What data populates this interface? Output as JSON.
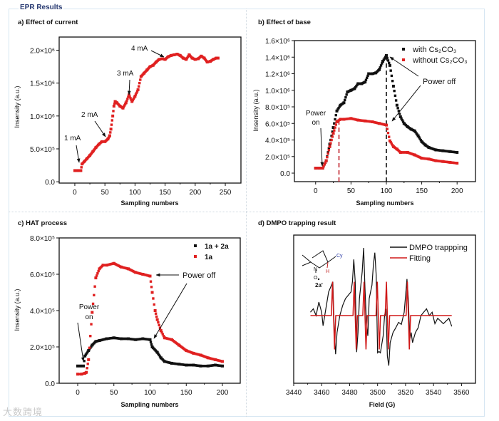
{
  "header": {
    "title": "EPR Results"
  },
  "watermark": "大数跨境",
  "chart_data": [
    {
      "id": "a",
      "panel_title": "a) Effect of current",
      "type": "scatter",
      "xlabel": "Sampling numbers",
      "ylabel": "Insensity (a.u.)",
      "xlim": [
        -26,
        276
      ],
      "ylim": [
        -20000,
        2200000
      ],
      "xticks": [
        0,
        50,
        100,
        150,
        200,
        250
      ],
      "xtick_labels": [
        "0",
        "50",
        "100",
        "150",
        "200",
        "250"
      ],
      "yticks": [
        0,
        500000,
        1000000,
        1500000,
        2000000
      ],
      "ytick_labels": [
        "0.0",
        "5.0×10⁵",
        "1.0×10⁶",
        "1.5×10⁶",
        "2.0×10⁶"
      ],
      "series": [
        {
          "name": "intensity",
          "color": "#e02020",
          "x": [
            0,
            5,
            10,
            12,
            16,
            20,
            25,
            30,
            35,
            40,
            45,
            50,
            55,
            58,
            60,
            63,
            65,
            67,
            70,
            75,
            80,
            85,
            90,
            95,
            100,
            105,
            110,
            115,
            120,
            125,
            130,
            135,
            140,
            145,
            150,
            155,
            160,
            165,
            170,
            175,
            180,
            185,
            190,
            195,
            200,
            205,
            210,
            215,
            220,
            225,
            230,
            235,
            238
          ],
          "y": [
            170000,
            170000,
            170000,
            270000,
            310000,
            350000,
            400000,
            460000,
            520000,
            570000,
            610000,
            610000,
            650000,
            700000,
            800000,
            1000000,
            1150000,
            1220000,
            1200000,
            1150000,
            1120000,
            1200000,
            1320000,
            1220000,
            1300000,
            1400000,
            1600000,
            1650000,
            1700000,
            1750000,
            1770000,
            1820000,
            1860000,
            1870000,
            1860000,
            1900000,
            1920000,
            1930000,
            1940000,
            1920000,
            1880000,
            1860000,
            1930000,
            1880000,
            1860000,
            1870000,
            1910000,
            1880000,
            1820000,
            1830000,
            1860000,
            1880000,
            1880000
          ]
        }
      ],
      "annotations": [
        {
          "text": "1 mA",
          "at_x": 8,
          "at_y": 220000
        },
        {
          "text": "2 mA",
          "at_x": 52,
          "at_y": 680000
        },
        {
          "text": "3 mA",
          "at_x": 92,
          "at_y": 1320000
        },
        {
          "text": "4 mA",
          "at_x": 148,
          "at_y": 1890000
        }
      ]
    },
    {
      "id": "b",
      "panel_title": "b) Effect of base",
      "type": "scatter",
      "xlabel": "Sampling numbers",
      "ylabel": "Insensity (a.u.)",
      "xlim": [
        -30,
        226
      ],
      "ylim": [
        -103000,
        1600000
      ],
      "xticks": [
        0,
        50,
        100,
        150,
        200
      ],
      "xtick_labels": [
        "0",
        "50",
        "100",
        "150",
        "200"
      ],
      "yticks": [
        0,
        200000,
        400000,
        600000,
        800000,
        1000000,
        1200000,
        1400000,
        1600000
      ],
      "ytick_labels": [
        "0.0",
        "2.0×10⁵",
        "4.0×10⁵",
        "6.0×10⁵",
        "8.0×10⁵",
        "1.0×10⁶",
        "1.2×10⁶",
        "1.4×10⁶",
        "1.6×10⁶"
      ],
      "legend": "top-right",
      "series": [
        {
          "name": "with Cs₂CO₃",
          "color": "#111111",
          "x": [
            0,
            5,
            10,
            15,
            20,
            25,
            30,
            35,
            40,
            45,
            50,
            55,
            60,
            65,
            70,
            75,
            80,
            85,
            90,
            95,
            100,
            105,
            110,
            115,
            120,
            125,
            130,
            135,
            140,
            145,
            150,
            155,
            160,
            170,
            180,
            190,
            200
          ],
          "y": [
            60000,
            60000,
            60000,
            150000,
            350000,
            550000,
            750000,
            820000,
            850000,
            980000,
            1000000,
            1020000,
            1080000,
            1080000,
            1100000,
            1200000,
            1200000,
            1210000,
            1250000,
            1350000,
            1420000,
            1300000,
            1050000,
            820000,
            680000,
            600000,
            560000,
            530000,
            510000,
            450000,
            380000,
            340000,
            310000,
            280000,
            270000,
            260000,
            250000
          ]
        },
        {
          "name": "without Cs₂CO₃",
          "color": "#e02020",
          "x": [
            0,
            5,
            10,
            15,
            20,
            25,
            30,
            35,
            40,
            50,
            60,
            70,
            80,
            90,
            100,
            105,
            110,
            115,
            120,
            130,
            140,
            150,
            160,
            170,
            180,
            190,
            200
          ],
          "y": [
            60000,
            60000,
            60000,
            150000,
            320000,
            480000,
            620000,
            650000,
            650000,
            660000,
            640000,
            630000,
            620000,
            600000,
            580000,
            390000,
            320000,
            290000,
            250000,
            250000,
            220000,
            180000,
            170000,
            150000,
            140000,
            130000,
            120000
          ]
        }
      ],
      "reference_lines": [
        {
          "x": 33,
          "y_top": 650000,
          "color": "#c0202a"
        },
        {
          "x": 100,
          "y_top": 1420000,
          "color": "#111111"
        }
      ],
      "annotations": [
        {
          "text": "Power",
          "text2": "on",
          "at_x": 9,
          "at_y": 70000
        },
        {
          "text": "Power off",
          "at_x": 101,
          "at_y": 1420000,
          "at2_x": 103,
          "at2_y": 600000
        }
      ]
    },
    {
      "id": "c",
      "panel_title": "c) HAT process",
      "type": "scatter",
      "xlabel": "Sampling numbers",
      "ylabel": "Insensity (a.u.)",
      "xlim": [
        -25.6,
        224.6
      ],
      "ylim": [
        0,
        800000
      ],
      "xticks": [
        0,
        50,
        100,
        150,
        200
      ],
      "xtick_labels": [
        "0",
        "50",
        "100",
        "150",
        "200"
      ],
      "yticks": [
        0,
        200000,
        400000,
        600000,
        800000
      ],
      "ytick_labels": [
        "0.0",
        "2.0×10⁵",
        "4.0×10⁵",
        "6.0×10⁵",
        "8.0×10⁵"
      ],
      "legend": "top-right",
      "series": [
        {
          "name": "1a + 2a",
          "color": "#111111",
          "x": [
            0,
            4,
            8,
            10,
            15,
            20,
            25,
            30,
            40,
            50,
            60,
            70,
            80,
            90,
            100,
            103,
            110,
            115,
            120,
            130,
            140,
            150,
            160,
            170,
            180,
            190,
            200
          ],
          "y": [
            95000,
            95000,
            95000,
            150000,
            180000,
            210000,
            230000,
            235000,
            245000,
            250000,
            245000,
            245000,
            240000,
            245000,
            240000,
            200000,
            170000,
            140000,
            120000,
            110000,
            105000,
            100000,
            100000,
            95000,
            95000,
            100000,
            95000
          ]
        },
        {
          "name": "1a",
          "color": "#e02020",
          "x": [
            0,
            5,
            10,
            12,
            15,
            20,
            25,
            30,
            35,
            40,
            50,
            60,
            70,
            80,
            90,
            100,
            103,
            107,
            110,
            115,
            120,
            130,
            140,
            150,
            160,
            170,
            180,
            190,
            200
          ],
          "y": [
            50000,
            50000,
            55000,
            60000,
            130000,
            390000,
            580000,
            630000,
            650000,
            650000,
            660000,
            640000,
            630000,
            610000,
            600000,
            590000,
            500000,
            400000,
            350000,
            290000,
            250000,
            240000,
            210000,
            180000,
            165000,
            155000,
            140000,
            130000,
            120000
          ]
        }
      ],
      "annotations": [
        {
          "text": "Power",
          "text2": "on",
          "at_x": 8,
          "at_y": 110000
        },
        {
          "text": "Power off",
          "at_x": 103,
          "at_y": 600000,
          "at2_x": 104,
          "at2_y": 240000
        }
      ]
    },
    {
      "id": "d",
      "panel_title": "d) DMPO trapping result",
      "type": "line",
      "xlabel": "Field (G)",
      "ylabel": "",
      "xlim": [
        3440,
        3570
      ],
      "ylim": [
        -10,
        11.9
      ],
      "xticks": [
        3440,
        3460,
        3480,
        3500,
        3520,
        3540,
        3560
      ],
      "xtick_labels": [
        "3440",
        "3460",
        "3480",
        "3500",
        "3520",
        "3540",
        "3560"
      ],
      "yticks": [],
      "ytick_labels": [],
      "legend": "top-right",
      "structure_label": "2a'",
      "structure_atoms": [
        "N",
        "O",
        "H",
        "Cy"
      ],
      "series": [
        {
          "name": "DMPO trappping",
          "color": "#111111",
          "x": [
            3452,
            3454,
            3456,
            3458,
            3460,
            3461,
            3463,
            3465,
            3467,
            3468,
            3469,
            3470,
            3471,
            3473,
            3475,
            3477,
            3479,
            3481,
            3482,
            3483,
            3484,
            3485,
            3486,
            3487,
            3488,
            3489,
            3490,
            3491,
            3492,
            3493,
            3494,
            3496,
            3497,
            3498,
            3499,
            3500,
            3501,
            3502,
            3504,
            3505,
            3506,
            3507,
            3508,
            3509,
            3511,
            3513,
            3515,
            3517,
            3519,
            3521,
            3522,
            3523,
            3524,
            3525,
            3527,
            3529,
            3531,
            3533,
            3535,
            3537,
            3539,
            3541,
            3543,
            3545,
            3547,
            3549,
            3551,
            3553
          ],
          "y": [
            0.5,
            1,
            0,
            2,
            0.5,
            -1.5,
            1,
            3.5,
            4.5,
            5,
            -2,
            -5.7,
            -2.5,
            0,
            1.5,
            2.5,
            3,
            3.5,
            5,
            8.3,
            5,
            -5.4,
            -2.5,
            2.5,
            4.5,
            6.5,
            10,
            4,
            -1,
            -3,
            2.5,
            4.5,
            7.5,
            9.3,
            6,
            -5.5,
            -5.3,
            -5.5,
            -3,
            0,
            1,
            -6,
            -7.4,
            -4,
            -2.5,
            -1.8,
            -1,
            -1.3,
            0.5,
            5.4,
            2.5,
            -3.5,
            -2.5,
            -4,
            -2.5,
            -1.8,
            0,
            0.5,
            1,
            0,
            0.5,
            -1.2,
            -0.4,
            -0.8,
            -1.2,
            -0.8,
            -0.4,
            -1.6
          ]
        },
        {
          "name": "Fitting",
          "color": "#d01818",
          "baseline": 0,
          "x_start": 3452,
          "x_end": 3553,
          "line_centers": [
            3468.5,
            3484,
            3491,
            3500.5,
            3507,
            3522
          ],
          "line_amplitudes": [
            5,
            5,
            5,
            5,
            5,
            5
          ]
        }
      ]
    }
  ]
}
